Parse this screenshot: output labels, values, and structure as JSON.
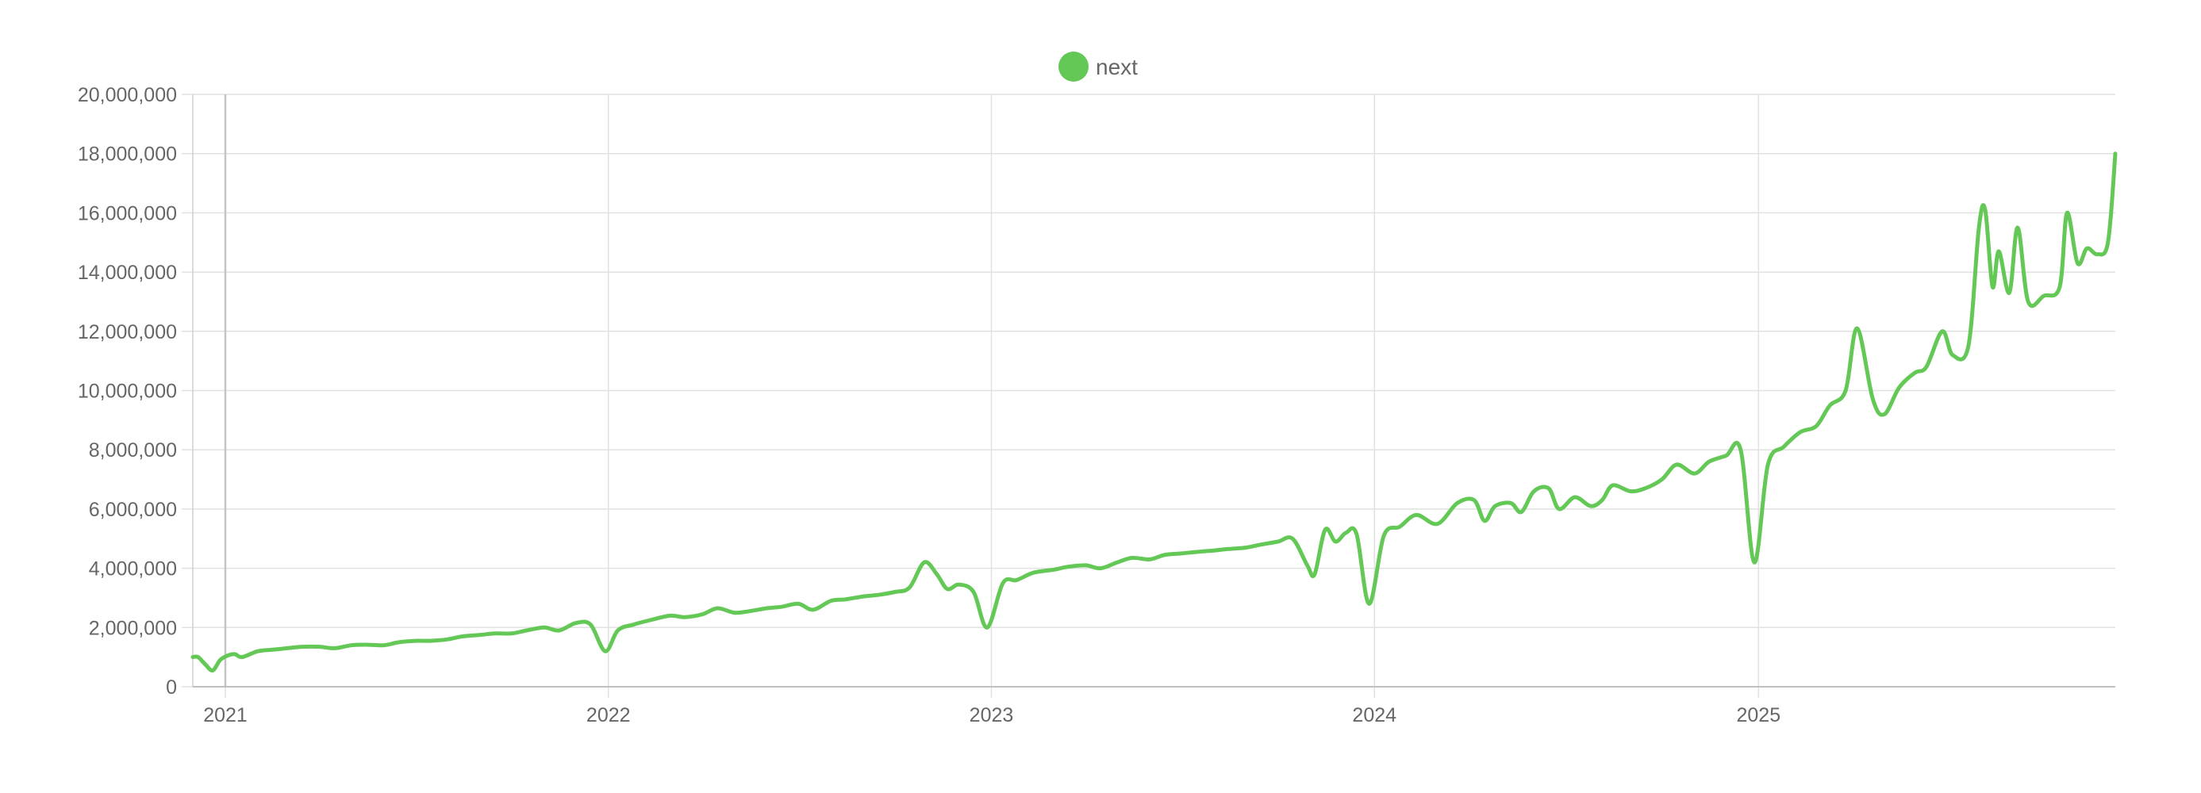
{
  "chart_data": {
    "type": "line",
    "title": "",
    "xlabel": "",
    "ylabel": "",
    "legend": {
      "position": "top-center",
      "entries": [
        "next"
      ]
    },
    "grid": true,
    "ylim": [
      0,
      20000000
    ],
    "xlim": [
      "2020-12-01",
      "2025-12-07"
    ],
    "y_ticks": [
      0,
      2000000,
      4000000,
      6000000,
      8000000,
      10000000,
      12000000,
      14000000,
      16000000,
      18000000,
      20000000
    ],
    "y_tick_labels": [
      "0",
      "2,000,000",
      "4,000,000",
      "6,000,000",
      "8,000,000",
      "10,000,000",
      "12,000,000",
      "14,000,000",
      "16,000,000",
      "18,000,000",
      "20,000,000"
    ],
    "x_ticks": [
      "2021-01-01",
      "2022-01-01",
      "2023-01-01",
      "2024-01-01",
      "2025-01-01"
    ],
    "x_tick_labels": [
      "2021",
      "2022",
      "2023",
      "2024",
      "2025"
    ],
    "series": [
      {
        "name": "next",
        "color": "#63c855",
        "points": [
          [
            "2020-12-01",
            1000000
          ],
          [
            "2020-12-06",
            1000000
          ],
          [
            "2020-12-13",
            750000
          ],
          [
            "2020-12-20",
            550000
          ],
          [
            "2020-12-27",
            900000
          ],
          [
            "2021-01-03",
            1050000
          ],
          [
            "2021-01-10",
            1100000
          ],
          [
            "2021-01-17",
            1000000
          ],
          [
            "2021-02-01",
            1200000
          ],
          [
            "2021-02-15",
            1250000
          ],
          [
            "2021-03-01",
            1300000
          ],
          [
            "2021-03-15",
            1350000
          ],
          [
            "2021-04-01",
            1350000
          ],
          [
            "2021-04-15",
            1300000
          ],
          [
            "2021-05-01",
            1400000
          ],
          [
            "2021-05-15",
            1420000
          ],
          [
            "2021-06-01",
            1400000
          ],
          [
            "2021-06-15",
            1500000
          ],
          [
            "2021-07-01",
            1550000
          ],
          [
            "2021-07-15",
            1550000
          ],
          [
            "2021-08-01",
            1600000
          ],
          [
            "2021-08-15",
            1700000
          ],
          [
            "2021-09-01",
            1750000
          ],
          [
            "2021-09-15",
            1800000
          ],
          [
            "2021-10-01",
            1800000
          ],
          [
            "2021-10-15",
            1900000
          ],
          [
            "2021-11-01",
            2000000
          ],
          [
            "2021-11-15",
            1900000
          ],
          [
            "2021-12-01",
            2150000
          ],
          [
            "2021-12-15",
            2100000
          ],
          [
            "2021-12-29",
            1200000
          ],
          [
            "2022-01-10",
            1900000
          ],
          [
            "2022-01-25",
            2100000
          ],
          [
            "2022-02-10",
            2250000
          ],
          [
            "2022-03-01",
            2400000
          ],
          [
            "2022-03-15",
            2350000
          ],
          [
            "2022-04-01",
            2450000
          ],
          [
            "2022-04-15",
            2650000
          ],
          [
            "2022-05-01",
            2500000
          ],
          [
            "2022-05-15",
            2550000
          ],
          [
            "2022-06-01",
            2650000
          ],
          [
            "2022-06-15",
            2700000
          ],
          [
            "2022-07-01",
            2800000
          ],
          [
            "2022-07-15",
            2600000
          ],
          [
            "2022-08-01",
            2900000
          ],
          [
            "2022-08-15",
            2950000
          ],
          [
            "2022-09-01",
            3050000
          ],
          [
            "2022-09-15",
            3100000
          ],
          [
            "2022-10-01",
            3200000
          ],
          [
            "2022-10-15",
            3350000
          ],
          [
            "2022-10-29",
            4200000
          ],
          [
            "2022-11-10",
            3800000
          ],
          [
            "2022-11-20",
            3300000
          ],
          [
            "2022-12-01",
            3450000
          ],
          [
            "2022-12-15",
            3200000
          ],
          [
            "2022-12-28",
            2000000
          ],
          [
            "2023-01-12",
            3500000
          ],
          [
            "2023-01-25",
            3600000
          ],
          [
            "2023-02-10",
            3850000
          ],
          [
            "2023-03-01",
            3950000
          ],
          [
            "2023-03-15",
            4050000
          ],
          [
            "2023-04-01",
            4100000
          ],
          [
            "2023-04-15",
            4000000
          ],
          [
            "2023-05-01",
            4200000
          ],
          [
            "2023-05-15",
            4350000
          ],
          [
            "2023-06-01",
            4300000
          ],
          [
            "2023-06-15",
            4450000
          ],
          [
            "2023-07-01",
            4500000
          ],
          [
            "2023-07-15",
            4550000
          ],
          [
            "2023-08-01",
            4600000
          ],
          [
            "2023-08-15",
            4650000
          ],
          [
            "2023-09-01",
            4700000
          ],
          [
            "2023-09-15",
            4800000
          ],
          [
            "2023-10-01",
            4900000
          ],
          [
            "2023-10-15",
            5000000
          ],
          [
            "2023-10-29",
            4100000
          ],
          [
            "2023-11-05",
            3800000
          ],
          [
            "2023-11-15",
            5300000
          ],
          [
            "2023-11-25",
            4900000
          ],
          [
            "2023-12-05",
            5200000
          ],
          [
            "2023-12-15",
            5150000
          ],
          [
            "2023-12-27",
            2800000
          ],
          [
            "2024-01-10",
            5100000
          ],
          [
            "2024-01-25",
            5400000
          ],
          [
            "2024-02-10",
            5800000
          ],
          [
            "2024-03-01",
            5500000
          ],
          [
            "2024-03-20",
            6200000
          ],
          [
            "2024-04-05",
            6300000
          ],
          [
            "2024-04-15",
            5600000
          ],
          [
            "2024-04-25",
            6100000
          ],
          [
            "2024-05-10",
            6200000
          ],
          [
            "2024-05-20",
            5900000
          ],
          [
            "2024-06-01",
            6600000
          ],
          [
            "2024-06-15",
            6700000
          ],
          [
            "2024-06-25",
            6000000
          ],
          [
            "2024-07-10",
            6400000
          ],
          [
            "2024-07-25",
            6100000
          ],
          [
            "2024-08-05",
            6300000
          ],
          [
            "2024-08-15",
            6800000
          ],
          [
            "2024-09-01",
            6600000
          ],
          [
            "2024-09-15",
            6700000
          ],
          [
            "2024-10-01",
            7000000
          ],
          [
            "2024-10-15",
            7500000
          ],
          [
            "2024-11-01",
            7200000
          ],
          [
            "2024-11-15",
            7600000
          ],
          [
            "2024-12-01",
            7800000
          ],
          [
            "2024-12-15",
            8000000
          ],
          [
            "2024-12-28",
            4200000
          ],
          [
            "2025-01-10",
            7500000
          ],
          [
            "2025-01-25",
            8100000
          ],
          [
            "2025-02-10",
            8600000
          ],
          [
            "2025-02-25",
            8800000
          ],
          [
            "2025-03-10",
            9500000
          ],
          [
            "2025-03-25",
            10000000
          ],
          [
            "2025-04-05",
            12100000
          ],
          [
            "2025-04-20",
            9700000
          ],
          [
            "2025-05-01",
            9200000
          ],
          [
            "2025-05-15",
            10100000
          ],
          [
            "2025-05-30",
            10600000
          ],
          [
            "2025-06-10",
            10800000
          ],
          [
            "2025-06-25",
            12000000
          ],
          [
            "2025-07-05",
            11200000
          ],
          [
            "2025-07-20",
            11500000
          ],
          [
            "2025-07-30",
            15500000
          ],
          [
            "2025-08-05",
            16100000
          ],
          [
            "2025-08-12",
            13500000
          ],
          [
            "2025-08-18",
            14700000
          ],
          [
            "2025-08-28",
            13300000
          ],
          [
            "2025-09-05",
            15500000
          ],
          [
            "2025-09-15",
            13000000
          ],
          [
            "2025-09-30",
            13200000
          ],
          [
            "2025-10-15",
            13500000
          ],
          [
            "2025-10-22",
            16000000
          ],
          [
            "2025-11-01",
            14300000
          ],
          [
            "2025-11-10",
            14800000
          ],
          [
            "2025-11-20",
            14600000
          ],
          [
            "2025-11-30",
            15000000
          ],
          [
            "2025-12-07",
            18000000
          ]
        ]
      }
    ]
  }
}
